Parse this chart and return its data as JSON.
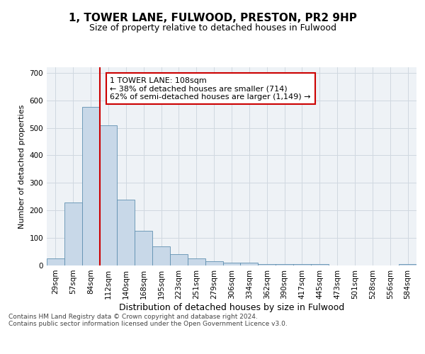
{
  "title": "1, TOWER LANE, FULWOOD, PRESTON, PR2 9HP",
  "subtitle": "Size of property relative to detached houses in Fulwood",
  "xlabel": "Distribution of detached houses by size in Fulwood",
  "ylabel": "Number of detached properties",
  "bar_labels": [
    "29sqm",
    "57sqm",
    "84sqm",
    "112sqm",
    "140sqm",
    "168sqm",
    "195sqm",
    "223sqm",
    "251sqm",
    "279sqm",
    "306sqm",
    "334sqm",
    "362sqm",
    "390sqm",
    "417sqm",
    "445sqm",
    "473sqm",
    "501sqm",
    "528sqm",
    "556sqm",
    "584sqm"
  ],
  "bar_values": [
    25,
    230,
    575,
    510,
    240,
    125,
    70,
    40,
    25,
    15,
    10,
    10,
    5,
    5,
    5,
    5,
    0,
    0,
    0,
    0,
    5
  ],
  "bar_color": "#c8d8e8",
  "bar_edge_color": "#6090b0",
  "vline_position": 2.5,
  "vline_color": "#cc0000",
  "annotation_text": "1 TOWER LANE: 108sqm\n← 38% of detached houses are smaller (714)\n62% of semi-detached houses are larger (1,149) →",
  "annotation_box_color": "#ffffff",
  "annotation_box_edge_color": "#cc0000",
  "ylim": [
    0,
    720
  ],
  "yticks": [
    0,
    100,
    200,
    300,
    400,
    500,
    600,
    700
  ],
  "grid_color": "#d0d8e0",
  "background_color": "#eef2f6",
  "footer_text": "Contains HM Land Registry data © Crown copyright and database right 2024.\nContains public sector information licensed under the Open Government Licence v3.0.",
  "title_fontsize": 11,
  "subtitle_fontsize": 9,
  "xlabel_fontsize": 9,
  "ylabel_fontsize": 8,
  "tick_fontsize": 7.5,
  "annotation_fontsize": 8,
  "footer_fontsize": 6.5
}
